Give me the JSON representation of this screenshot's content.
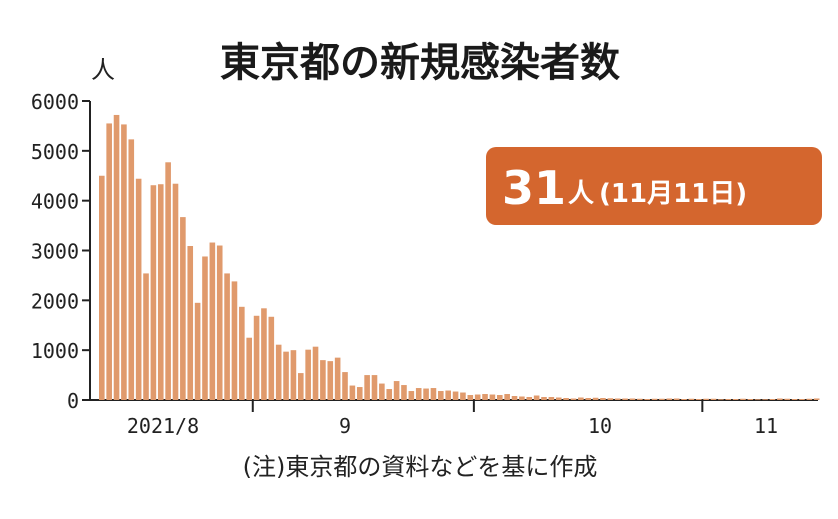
{
  "chart_data": {
    "type": "bar",
    "title": "東京都の新規感染者数",
    "ylabel": "人",
    "xlabel": "",
    "ylim": [
      0,
      6000
    ],
    "y_ticks": [
      "6000",
      "5000",
      "4000",
      "3000",
      "2000",
      "1000",
      "0"
    ],
    "y_tick_values": [
      6000,
      5000,
      4000,
      3000,
      2000,
      1000,
      0
    ],
    "x_tick_labels": [
      "2021/8",
      "9",
      "10",
      "11"
    ],
    "x_tick_day_index": [
      0,
      31,
      61,
      92
    ],
    "start_offset_days": 10,
    "grid": false,
    "legend": "none",
    "bar_color": "#e09a6c",
    "values": [
      4500,
      5550,
      5720,
      5530,
      5230,
      4440,
      2540,
      4310,
      4330,
      4770,
      4340,
      3670,
      3090,
      1950,
      2880,
      3160,
      3100,
      2540,
      2380,
      1870,
      1250,
      1690,
      1840,
      1670,
      1110,
      970,
      1000,
      540,
      1010,
      1070,
      800,
      780,
      850,
      560,
      290,
      260,
      500,
      500,
      330,
      220,
      380,
      300,
      180,
      240,
      230,
      240,
      180,
      190,
      170,
      150,
      100,
      110,
      120,
      110,
      100,
      120,
      80,
      70,
      60,
      90,
      60,
      60,
      50,
      40,
      30,
      50,
      40,
      45,
      40,
      35,
      30,
      30,
      30,
      25,
      20,
      25,
      25,
      30,
      30,
      20,
      25,
      20,
      25,
      25,
      15,
      20,
      20,
      25,
      20,
      15,
      15,
      20,
      30,
      25,
      20,
      20,
      25,
      31
    ],
    "callout": {
      "value": "31",
      "unit": "人",
      "date": "(11月11日)",
      "color": "#d4662e"
    },
    "note": "(注)東京都の資料などを基に作成"
  }
}
